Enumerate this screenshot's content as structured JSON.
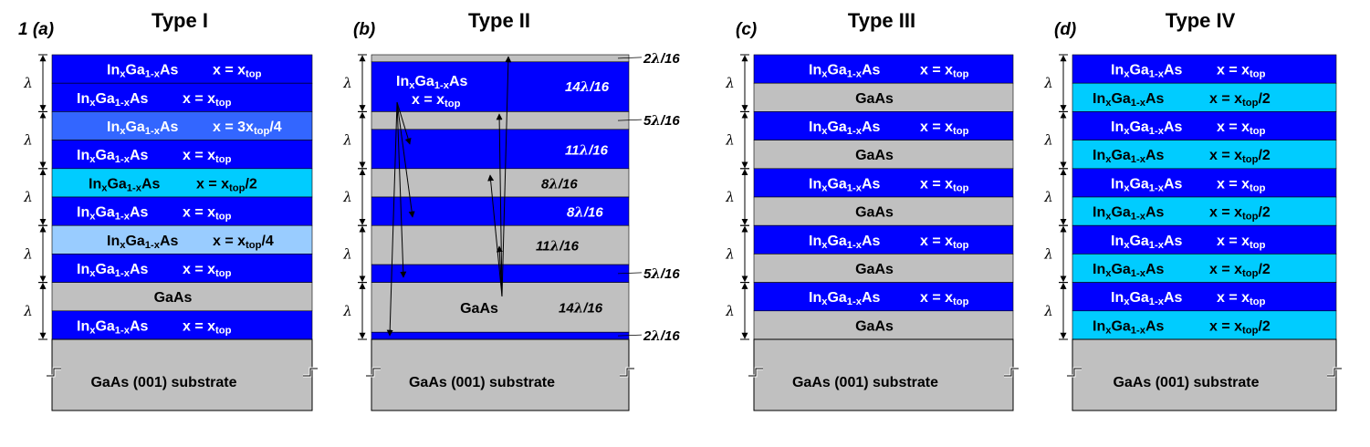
{
  "figure_label": "1",
  "colors": {
    "blue": "#0000ff",
    "mid_blue": "#3366ff",
    "cyan": "#00ccff",
    "light_blue": "#99ccff",
    "gray": "#c0c0c0",
    "text_light": "#ffffff",
    "text_dark": "#000000"
  },
  "unit_symbol": "λ",
  "panels": [
    {
      "id": "a",
      "letter": "(a)",
      "title": "Type I",
      "substrate": "GaAs (001) substrate",
      "lambda_count": 5,
      "layers": [
        {
          "color": "blue",
          "formula": true,
          "x": "x = x",
          "sub": "top",
          "tail": ""
        },
        {
          "color": "blue",
          "formula": true,
          "x": "x = x",
          "sub": "top",
          "tail": ""
        },
        {
          "color": "mid_blue",
          "formula": true,
          "x": "x = 3x",
          "sub": "top",
          "tail": "/4"
        },
        {
          "color": "blue",
          "formula": true,
          "x": "x = x",
          "sub": "top",
          "tail": ""
        },
        {
          "color": "cyan",
          "formula": true,
          "x": "x = x",
          "sub": "top",
          "tail": "/2",
          "dark": true
        },
        {
          "color": "blue",
          "formula": true,
          "x": "x = x",
          "sub": "top",
          "tail": ""
        },
        {
          "color": "light_blue",
          "formula": true,
          "x": "x = x",
          "sub": "top",
          "tail": "/4",
          "dark": true
        },
        {
          "color": "blue",
          "formula": true,
          "x": "x = x",
          "sub": "top",
          "tail": ""
        },
        {
          "color": "gray",
          "formula": false,
          "text": "GaAs",
          "dark": true
        },
        {
          "color": "blue",
          "formula": true,
          "x": "x = x",
          "sub": "top",
          "tail": ""
        }
      ]
    },
    {
      "id": "b",
      "letter": "(b)",
      "title": "Type II",
      "substrate": "GaAs (001) substrate",
      "lambda_count": 5,
      "layers": [
        {
          "color": "gray",
          "fraction": "2",
          "sixteen": 2
        },
        {
          "color": "blue",
          "fraction": "14",
          "sixteen": 14
        },
        {
          "color": "gray",
          "fraction": "5",
          "sixteen": 5
        },
        {
          "color": "blue",
          "fraction": "11",
          "sixteen": 11
        },
        {
          "color": "gray",
          "fraction": "8",
          "sixteen": 8
        },
        {
          "color": "blue",
          "fraction": "8",
          "sixteen": 8
        },
        {
          "color": "gray",
          "fraction": "11",
          "sixteen": 11
        },
        {
          "color": "blue",
          "fraction": "5",
          "sixteen": 5
        },
        {
          "color": "gray",
          "fraction": "14",
          "sixteen": 14
        },
        {
          "color": "blue",
          "fraction": "2",
          "sixteen": 2
        }
      ],
      "top_label": {
        "formula": "InxGa1-xAs",
        "x": "x = x",
        "sub": "top"
      },
      "gaas_label": "GaAs",
      "denominator": "16"
    },
    {
      "id": "c",
      "letter": "(c)",
      "title": "Type III",
      "substrate": "GaAs (001) substrate",
      "lambda_count": 5,
      "layers": [
        {
          "color": "blue",
          "formula": true,
          "x": "x = x",
          "sub": "top",
          "tail": ""
        },
        {
          "color": "gray",
          "formula": false,
          "text": "GaAs",
          "dark": true
        },
        {
          "color": "blue",
          "formula": true,
          "x": "x = x",
          "sub": "top",
          "tail": ""
        },
        {
          "color": "gray",
          "formula": false,
          "text": "GaAs",
          "dark": true
        },
        {
          "color": "blue",
          "formula": true,
          "x": "x = x",
          "sub": "top",
          "tail": ""
        },
        {
          "color": "gray",
          "formula": false,
          "text": "GaAs",
          "dark": true
        },
        {
          "color": "blue",
          "formula": true,
          "x": "x = x",
          "sub": "top",
          "tail": ""
        },
        {
          "color": "gray",
          "formula": false,
          "text": "GaAs",
          "dark": true
        },
        {
          "color": "blue",
          "formula": true,
          "x": "x = x",
          "sub": "top",
          "tail": ""
        },
        {
          "color": "gray",
          "formula": false,
          "text": "GaAs",
          "dark": true
        }
      ]
    },
    {
      "id": "d",
      "letter": "(d)",
      "title": "Type IV",
      "substrate": "GaAs (001) substrate",
      "lambda_count": 5,
      "layers": [
        {
          "color": "blue",
          "formula": true,
          "x": "x = x",
          "sub": "top",
          "tail": ""
        },
        {
          "color": "cyan",
          "formula": true,
          "x": "x = x",
          "sub": "top",
          "tail": "/2",
          "dark": true
        },
        {
          "color": "blue",
          "formula": true,
          "x": "x = x",
          "sub": "top",
          "tail": ""
        },
        {
          "color": "cyan",
          "formula": true,
          "x": "x = x",
          "sub": "top",
          "tail": "/2",
          "dark": true
        },
        {
          "color": "blue",
          "formula": true,
          "x": "x = x",
          "sub": "top",
          "tail": ""
        },
        {
          "color": "cyan",
          "formula": true,
          "x": "x = x",
          "sub": "top",
          "tail": "/2",
          "dark": true
        },
        {
          "color": "blue",
          "formula": true,
          "x": "x = x",
          "sub": "top",
          "tail": ""
        },
        {
          "color": "cyan",
          "formula": true,
          "x": "x = x",
          "sub": "top",
          "tail": "/2",
          "dark": true
        },
        {
          "color": "blue",
          "formula": true,
          "x": "x = x",
          "sub": "top",
          "tail": ""
        },
        {
          "color": "cyan",
          "formula": true,
          "x": "x = x",
          "sub": "top",
          "tail": "/2",
          "dark": true
        }
      ]
    }
  ]
}
